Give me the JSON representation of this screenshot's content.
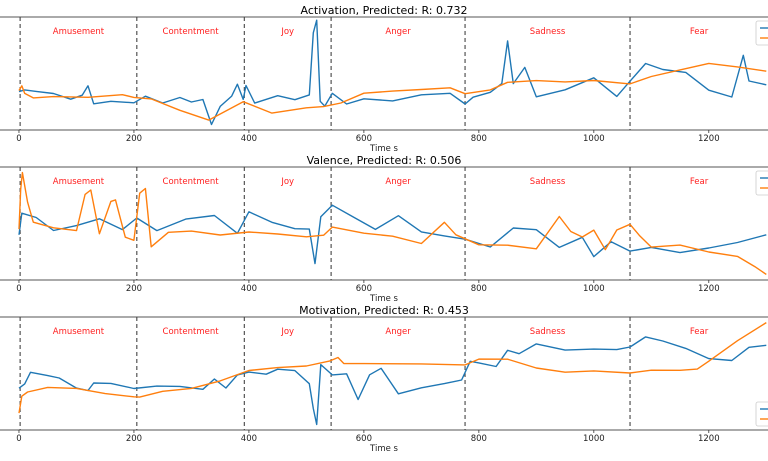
{
  "chart_data": [
    {
      "type": "line",
      "title": "Activation, Predicted: R: 0.732",
      "xlabel": "Time s",
      "ylabel": "",
      "xlim": [
        -33,
        1303
      ],
      "ylim": [
        0,
        1
      ],
      "xticks": [
        0,
        200,
        400,
        600,
        800,
        1000,
        1200
      ],
      "grid": false,
      "legend": "top-right",
      "events": [
        {
          "label": "Amusement",
          "start": 2
        },
        {
          "label": "Contentment",
          "start": 205
        },
        {
          "label": "Joy",
          "start": 392
        },
        {
          "label": "Anger",
          "start": 543
        },
        {
          "label": "Sadness",
          "start": 776
        },
        {
          "label": "Fear",
          "start": 1063
        }
      ],
      "series": [
        {
          "color": "#1f77b4",
          "x": [
            0,
            10,
            30,
            60,
            90,
            110,
            120,
            130,
            160,
            200,
            220,
            250,
            280,
            300,
            320,
            335,
            350,
            370,
            380,
            390,
            395,
            410,
            450,
            480,
            505,
            512,
            518,
            524,
            532,
            545,
            570,
            600,
            650,
            700,
            750,
            776,
            790,
            820,
            840,
            850,
            860,
            880,
            900,
            950,
            1000,
            1040,
            1063,
            1090,
            1120,
            1160,
            1200,
            1240,
            1260,
            1270,
            1300
          ],
          "y": [
            0.34,
            0.35,
            0.33,
            0.33,
            0.28,
            0.32,
            0.38,
            0.24,
            0.26,
            0.25,
            0.3,
            0.25,
            0.28,
            0.25,
            0.28,
            0.05,
            0.2,
            0.3,
            0.4,
            0.28,
            0.4,
            0.25,
            0.3,
            0.28,
            0.3,
            0.85,
            0.96,
            0.25,
            0.2,
            0.32,
            0.24,
            0.28,
            0.25,
            0.3,
            0.32,
            0.22,
            0.28,
            0.33,
            0.4,
            0.8,
            0.4,
            0.55,
            0.3,
            0.35,
            0.45,
            0.3,
            0.42,
            0.58,
            0.53,
            0.5,
            0.36,
            0.3,
            0.66,
            0.44,
            0.4
          ]
        },
        {
          "color": "#ff7f0e",
          "x": [
            0,
            5,
            10,
            25,
            60,
            120,
            180,
            200,
            230,
            280,
            330,
            390,
            440,
            500,
            530,
            560,
            600,
            650,
            700,
            750,
            776,
            820,
            850,
            900,
            950,
            1000,
            1063,
            1100,
            1150,
            1200,
            1250,
            1300
          ],
          "y": [
            0.35,
            0.38,
            0.33,
            0.28,
            0.29,
            0.3,
            0.3,
            0.28,
            0.27,
            0.18,
            0.1,
            0.24,
            0.15,
            0.19,
            0.2,
            0.25,
            0.32,
            0.35,
            0.37,
            0.38,
            0.33,
            0.36,
            0.41,
            0.43,
            0.43,
            0.45,
            0.42,
            0.47,
            0.52,
            0.58,
            0.56,
            0.52
          ]
        }
      ]
    },
    {
      "type": "line",
      "title": "Valence, Predicted: R: 0.506",
      "xlabel": "Time s",
      "ylabel": "",
      "xlim": [
        -33,
        1303
      ],
      "ylim": [
        0,
        1
      ],
      "xticks": [
        0,
        200,
        400,
        600,
        800,
        1000,
        1200
      ],
      "grid": false,
      "legend": "top-right",
      "events": [
        {
          "label": "Amusement",
          "start": 2
        },
        {
          "label": "Contentment",
          "start": 205
        },
        {
          "label": "Joy",
          "start": 392
        },
        {
          "label": "Anger",
          "start": 543
        },
        {
          "label": "Sadness",
          "start": 776
        },
        {
          "label": "Fear",
          "start": 1063
        }
      ],
      "series": [
        {
          "color": "#1f77b4",
          "x": [
            0,
            5,
            30,
            60,
            100,
            140,
            180,
            205,
            240,
            290,
            340,
            380,
            400,
            440,
            480,
            505,
            515,
            525,
            545,
            580,
            620,
            660,
            700,
            740,
            776,
            820,
            860,
            900,
            940,
            980,
            1000,
            1030,
            1063,
            1100,
            1150,
            1200,
            1250,
            1300
          ],
          "y": [
            0.4,
            0.6,
            0.55,
            0.45,
            0.48,
            0.53,
            0.45,
            0.55,
            0.44,
            0.55,
            0.58,
            0.42,
            0.6,
            0.5,
            0.46,
            0.45,
            0.15,
            0.55,
            0.65,
            0.55,
            0.45,
            0.58,
            0.42,
            0.38,
            0.35,
            0.3,
            0.45,
            0.44,
            0.3,
            0.38,
            0.2,
            0.35,
            0.25,
            0.3,
            0.25,
            0.28,
            0.32,
            0.4
          ]
        },
        {
          "color": "#ff7f0e",
          "x": [
            0,
            3,
            6,
            15,
            25,
            60,
            100,
            115,
            125,
            140,
            160,
            168,
            185,
            200,
            210,
            220,
            230,
            260,
            300,
            350,
            400,
            450,
            500,
            530,
            545,
            600,
            650,
            700,
            740,
            760,
            800,
            850,
            900,
            940,
            960,
            980,
            1000,
            1020,
            1040,
            1063,
            1080,
            1100,
            1150,
            1200,
            1250,
            1280,
            1300
          ],
          "y": [
            0.45,
            0.8,
            0.95,
            0.7,
            0.5,
            0.45,
            0.44,
            0.75,
            0.8,
            0.42,
            0.7,
            0.72,
            0.37,
            0.34,
            0.78,
            0.8,
            0.3,
            0.43,
            0.44,
            0.41,
            0.43,
            0.4,
            0.37,
            0.4,
            0.48,
            0.42,
            0.4,
            0.33,
            0.52,
            0.4,
            0.3,
            0.3,
            0.28,
            0.55,
            0.42,
            0.38,
            0.45,
            0.28,
            0.45,
            0.5,
            0.38,
            0.28,
            0.3,
            0.25,
            0.22,
            0.12,
            0.05
          ]
        }
      ]
    },
    {
      "type": "line",
      "title": "Motivation, Predicted: R: 0.453",
      "xlabel": "Time s",
      "ylabel": "",
      "xlim": [
        -33,
        1303
      ],
      "ylim": [
        0,
        1
      ],
      "xticks": [
        0,
        200,
        400,
        600,
        800,
        1000,
        1200
      ],
      "grid": false,
      "legend": "bottom-right",
      "events": [
        {
          "label": "Amusement",
          "start": 2
        },
        {
          "label": "Contentment",
          "start": 205
        },
        {
          "label": "Joy",
          "start": 392
        },
        {
          "label": "Anger",
          "start": 543
        },
        {
          "label": "Sadness",
          "start": 776
        },
        {
          "label": "Fear",
          "start": 1063
        }
      ],
      "series": [
        {
          "color": "#1f77b4",
          "x": [
            0,
            10,
            20,
            50,
            70,
            100,
            120,
            130,
            160,
            200,
            240,
            280,
            320,
            340,
            360,
            380,
            400,
            430,
            450,
            480,
            505,
            512,
            518,
            525,
            545,
            570,
            590,
            610,
            630,
            660,
            700,
            740,
            770,
            785,
            800,
            830,
            850,
            870,
            900,
            950,
            1000,
            1040,
            1063,
            1090,
            1120,
            1160,
            1200,
            1240,
            1270,
            1300
          ],
          "y": [
            0.37,
            0.42,
            0.5,
            0.48,
            0.45,
            0.38,
            0.35,
            0.42,
            0.4,
            0.37,
            0.4,
            0.38,
            0.35,
            0.45,
            0.38,
            0.5,
            0.52,
            0.5,
            0.55,
            0.52,
            0.42,
            0.2,
            0.05,
            0.58,
            0.48,
            0.5,
            0.28,
            0.5,
            0.55,
            0.33,
            0.38,
            0.4,
            0.45,
            0.62,
            0.6,
            0.55,
            0.7,
            0.68,
            0.75,
            0.7,
            0.72,
            0.7,
            0.74,
            0.82,
            0.8,
            0.72,
            0.62,
            0.62,
            0.72,
            0.75
          ]
        },
        {
          "color": "#ff7f0e",
          "x": [
            0,
            5,
            15,
            50,
            100,
            150,
            200,
            210,
            250,
            300,
            350,
            400,
            450,
            500,
            540,
            555,
            565,
            600,
            700,
            776,
            800,
            850,
            900,
            950,
            1000,
            1063,
            1100,
            1150,
            1180,
            1200,
            1250,
            1300
          ],
          "y": [
            0.15,
            0.3,
            0.34,
            0.38,
            0.36,
            0.31,
            0.29,
            0.3,
            0.35,
            0.38,
            0.44,
            0.52,
            0.54,
            0.56,
            0.6,
            0.63,
            0.6,
            0.6,
            0.58,
            0.58,
            0.62,
            0.63,
            0.56,
            0.52,
            0.52,
            0.5,
            0.52,
            0.53,
            0.55,
            0.62,
            0.8,
            0.95
          ]
        }
      ]
    }
  ]
}
